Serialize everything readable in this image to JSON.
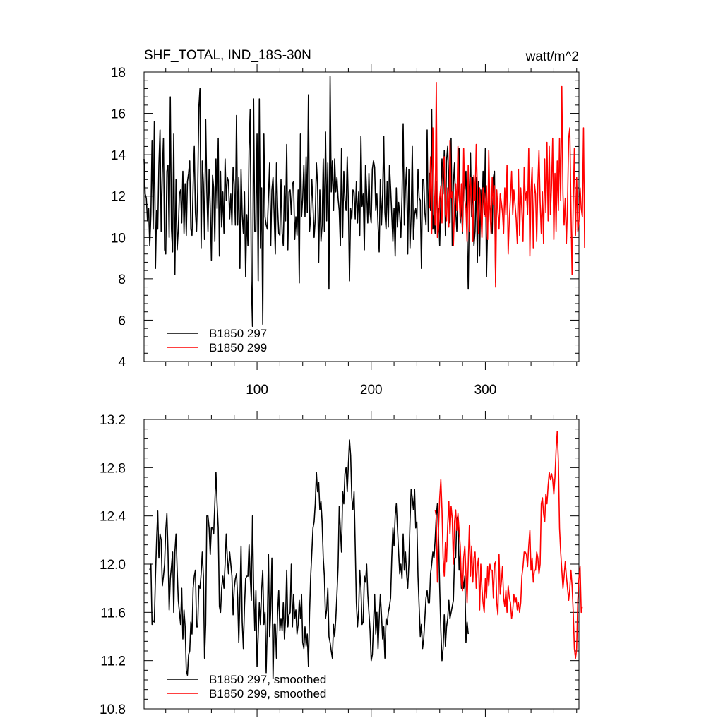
{
  "chart_data": [
    {
      "type": "line",
      "title": "SHF_TOTAL, IND_18S-30N",
      "units_label": "watt/m^2",
      "xlim": [
        1,
        382
      ],
      "ylim": [
        4,
        18
      ],
      "yticks": [
        4,
        6,
        8,
        10,
        12,
        14,
        16,
        18
      ],
      "xticks": [
        100,
        200,
        300
      ],
      "ytick_labels": [
        "4",
        "6",
        "8",
        "10",
        "12",
        "14",
        "16",
        "18"
      ],
      "xtick_labels": [
        "100",
        "200",
        "300"
      ],
      "legend_position": "bottom-left",
      "series": [
        {
          "name": "B1850 297",
          "color": "#000000",
          "x_start": 1,
          "values": [
            13.8,
            12.1,
            11.9,
            10.8,
            11.4,
            9.6,
            11.1,
            14.7,
            10.4,
            15.6,
            8.5,
            11.3,
            10.4,
            13.5,
            15.2,
            10.3,
            13.1,
            14.8,
            9.4,
            9.2,
            13.2,
            13.5,
            10.0,
            16.8,
            10.4,
            9.3,
            15.0,
            8.2,
            12.8,
            9.4,
            10.4,
            12.1,
            12.3,
            10.7,
            13.2,
            10.2,
            12.6,
            10.1,
            12.7,
            13.1,
            13.7,
            10.4,
            10.1,
            12.5,
            14.4,
            11.2,
            10.3,
            12.2,
            16.3,
            17.2,
            9.5,
            13.7,
            12.6,
            9.9,
            15.7,
            12.2,
            10.3,
            13.3,
            11.4,
            8.9,
            13.0,
            12.4,
            9.8,
            13.8,
            11.4,
            14.8,
            9.1,
            13.2,
            10.5,
            12.2,
            10.2,
            13.8,
            11.8,
            12.9,
            12.7,
            10.9,
            12.1,
            10.6,
            13.4,
            12.6,
            10.6,
            15.9,
            10.6,
            12.9,
            8.5,
            13.3,
            11.1,
            10.2,
            12.2,
            8.1,
            11.1,
            9.6,
            14.2,
            16.2,
            7.9,
            5.7,
            16.7,
            10.3,
            10.3,
            15.0,
            7.9,
            16.7,
            9.5,
            12.4,
            5.8,
            15.0,
            11.0,
            10.6,
            10.4,
            12.0,
            13.6,
            9.6,
            12.3,
            12.9,
            11.1,
            9.2,
            13.6,
            11.5,
            10.2,
            10.1,
            12.8,
            10.2,
            9.6,
            12.5,
            10.8,
            14.5,
            9.4,
            12.2,
            12.3,
            11.1,
            12.6,
            12.7,
            9.9,
            11.0,
            10.1,
            12.3,
            7.8,
            15.0,
            11.0,
            11.9,
            13.5,
            11.0,
            13.9,
            11.2,
            16.9,
            10.3,
            11.0,
            12.8,
            11.6,
            10.0,
            10.9,
            13.6,
            12.6,
            8.8,
            12.3,
            9.8,
            10.6,
            13.8,
            10.3,
            15.1,
            10.8,
            13.6,
            7.5,
            17.8,
            12.2,
            13.7,
            11.3,
            13.8,
            12.2,
            12.9,
            11.9,
            11.3,
            9.6,
            14.3,
            10.0,
            13.2,
            11.8,
            11.3,
            13.9,
            11.7,
            7.9,
            11.4,
            10.9,
            12.3,
            12.2,
            10.9,
            12.7,
            10.7,
            12.2,
            10.1,
            14.9,
            11.5,
            12.1,
            9.4,
            13.5,
            12.2,
            10.7,
            13.1,
            11.2,
            10.7,
            13.3,
            13.7,
            13.4,
            11.3,
            12.1,
            10.6,
            9.3,
            12.8,
            10.6,
            12.1,
            14.9,
            11.2,
            10.4,
            12.7,
            10.5,
            13.5,
            12.4,
            11.1,
            9.8,
            11.4,
            9.1,
            12.4,
            10.5,
            11.7,
            11.1,
            10.0,
            12.0,
            15.5,
            10.6,
            12.4,
            13.4,
            9.2,
            13.3,
            9.5,
            11.1,
            14.4,
            9.9,
            11.1,
            11.4,
            10.9,
            13.3,
            11.9,
            11.8,
            8.5,
            12.8,
            12.8,
            11.2,
            10.6,
            15.2,
            10.3,
            13.1,
            11.3,
            16.2,
            10.4,
            11.1,
            10.2,
            12.7,
            10.9,
            11.4,
            9.6,
            12.0,
            13.8,
            12.1,
            14.2,
            10.1,
            13.7,
            14.4,
            12.6,
            10.7,
            14.8,
            9.6,
            12.6,
            13.6,
            11.3,
            10.3,
            12.1,
            14.3,
            10.7,
            11.6,
            10.2,
            12.9,
            12.3,
            13.2,
            10.1,
            7.5,
            11.7,
            14.1,
            11.0,
            12.9,
            9.6,
            10.3,
            12.9,
            8.8,
            12.7,
            9.1,
            12.3,
            10.7,
            13.2,
            11.1,
            14.3,
            8.1,
            10.6,
            12.3,
            11.5,
            10.8,
            10.2,
            12.9,
            13.2,
            7.8
          ]
        },
        {
          "name": "B1850 299",
          "color": "#ff0000",
          "x_start": 251,
          "values": [
            11.4,
            13.9,
            10.2,
            15.3,
            12.3,
            10.6,
            17.5,
            10.0,
            10.4,
            11.9,
            12.5,
            10.7,
            13.4,
            13.9,
            11.1,
            10.8,
            12.4,
            10.5,
            14.7,
            11.9,
            12.2,
            9.6,
            11.5,
            12.6,
            11.3,
            14.4,
            12.1,
            10.9,
            12.6,
            10.3,
            14.3,
            11.8,
            11.4,
            9.8,
            13.5,
            10.3,
            12.9,
            11.8,
            9.8,
            13.0,
            11.8,
            14.5,
            12.3,
            10.2,
            12.4,
            11.3,
            10.0,
            12.4,
            12.1,
            11.0,
            12.5,
            9.9,
            14.2,
            11.4,
            10.2,
            12.9,
            11.6,
            12.5,
            7.6,
            12.3,
            11.2,
            10.4,
            12.1,
            11.7,
            11.2,
            10.2,
            12.4,
            11.1,
            13.5,
            9.2,
            10.9,
            11.9,
            13.2,
            11.1,
            12.3,
            11.6,
            10.9,
            9.7,
            13.3,
            10.1,
            12.4,
            11.3,
            9.8,
            13.4,
            11.8,
            12.2,
            11.1,
            14.3,
            9.1,
            12.2,
            13.4,
            9.5,
            12.6,
            12.1,
            9.8,
            12.6,
            14.2,
            11.7,
            10.2,
            12.2,
            9.7,
            13.8,
            11.2,
            14.6,
            10.8,
            14.4,
            11.1,
            12.5,
            14.8,
            9.9,
            13.1,
            10.3,
            13.7,
            11.3,
            14.8,
            11.8,
            17.3,
            12.1,
            10.6,
            11.9,
            9.7,
            11.6,
            14.8,
            15.3,
            11.4,
            8.2,
            11.7,
            14.3,
            10.1,
            12.9,
            10.3,
            10.8,
            12.4,
            11.4,
            11.0,
            15.3,
            9.5
          ]
        }
      ]
    },
    {
      "type": "line",
      "xlim": [
        1,
        382
      ],
      "ylim": [
        10.8,
        13.2
      ],
      "yticks": [
        10.8,
        11.2,
        11.6,
        12.0,
        12.4,
        12.8,
        13.2
      ],
      "xticks": [
        100,
        200,
        300
      ],
      "ytick_labels": [
        "10.8",
        "11.2",
        "11.6",
        "12.0",
        "12.4",
        "12.8",
        "13.2"
      ],
      "legend_position": "bottom-left",
      "series": [
        {
          "name": "B1850 297, smoothed",
          "color": "#000000",
          "x_start": 6,
          "values": [
            11.95,
            12.0,
            11.5,
            11.53,
            11.52,
            11.9,
            12.2,
            12.44,
            12.05,
            12.25,
            12.2,
            11.82,
            11.9,
            12.0,
            12.28,
            12.42,
            12.1,
            11.62,
            11.88,
            11.98,
            12.1,
            11.6,
            12.1,
            12.25,
            11.95,
            11.7,
            11.6,
            11.5,
            11.8,
            11.38,
            11.62,
            11.48,
            11.12,
            11.08,
            11.25,
            11.28,
            11.52,
            11.42,
            11.8,
            11.9,
            11.95,
            11.48,
            11.48,
            11.82,
            11.8,
            11.92,
            12.1,
            11.9,
            11.22,
            11.5,
            12.4,
            12.4,
            12.3,
            12.08,
            12.3,
            12.3,
            12.25,
            12.5,
            12.76,
            12.5,
            12.3,
            11.65,
            11.6,
            11.8,
            11.9,
            11.8,
            12.0,
            12.25,
            12.05,
            11.92,
            12.1,
            12.0,
            11.9,
            11.58,
            11.8,
            11.88,
            11.92,
            11.72,
            11.35,
            11.72,
            12.15,
            11.52,
            11.3,
            11.65,
            11.88,
            11.9,
            11.9,
            12.16,
            11.9,
            11.7,
            12.4,
            11.8,
            11.45,
            11.78,
            11.15,
            11.4,
            11.68,
            11.5,
            11.78,
            11.95,
            11.5,
            11.6,
            11.1,
            11.5,
            12.08,
            11.4,
            11.62,
            12.05,
            11.05,
            11.5,
            11.5,
            11.22,
            11.6,
            11.78,
            11.45,
            11.55,
            11.45,
            11.68,
            11.38,
            11.55,
            11.95,
            11.48,
            11.58,
            11.6,
            12.0,
            11.48,
            11.75,
            11.55,
            11.62,
            11.42,
            11.5,
            11.7,
            11.55,
            11.75,
            11.35,
            11.3,
            11.48,
            11.32,
            11.42,
            11.15,
            11.6,
            11.9,
            12.1,
            12.3,
            12.35,
            12.5,
            12.76,
            12.6,
            12.68,
            12.45,
            12.52,
            12.35,
            12.05,
            11.9,
            11.55,
            11.62,
            11.8,
            11.4,
            11.35,
            11.28,
            11.22,
            11.5,
            11.4,
            11.55,
            11.75,
            11.98,
            12.48,
            12.28,
            12.1,
            12.6,
            12.5,
            12.75,
            12.8,
            12.6,
            12.82,
            13.03,
            12.9,
            12.55,
            12.45,
            12.6,
            12.15,
            11.68,
            11.48,
            11.62,
            11.95,
            11.8,
            11.5,
            11.52,
            11.9,
            11.85,
            12.0,
            11.75,
            11.6,
            11.45,
            11.2,
            11.25,
            11.5,
            11.75,
            11.42,
            11.6,
            11.3,
            11.55,
            11.75,
            11.58,
            11.38,
            11.48,
            11.22,
            11.55,
            11.5,
            11.6,
            11.65,
            11.72,
            12.05,
            12.3,
            12.15,
            12.4,
            12.5,
            12.3,
            12.1,
            11.92,
            12.0,
            11.88,
            12.25,
            11.95,
            12.1,
            11.92,
            11.8,
            12.0,
            12.35,
            12.62,
            12.55,
            12.45,
            12.62,
            12.3,
            12.35,
            11.9,
            11.65,
            11.4,
            11.5,
            11.3,
            11.38,
            11.55,
            11.72,
            11.78,
            11.68,
            11.68,
            11.92,
            12.0,
            12.1,
            12.05,
            12.2,
            12.4,
            12.5,
            12.22,
            11.8,
            11.45,
            11.2,
            11.3,
            11.58,
            11.32,
            11.48,
            11.55,
            11.7,
            11.55,
            11.6,
            11.65,
            11.7,
            12.05,
            12.05,
            12.38,
            12.4,
            11.95,
            12.08,
            11.8,
            11.9,
            11.8,
            11.9,
            11.35,
            11.52,
            11.42
          ]
        },
        {
          "name": "B1850 299, smoothed",
          "color": "#ff0000",
          "x_start": 256,
          "values": [
            12.45,
            12.4,
            11.85,
            12.3,
            12.55,
            12.7,
            12.45,
            12.05,
            11.9,
            12.18,
            12.02,
            12.32,
            12.52,
            12.25,
            12.48,
            12.38,
            12.0,
            12.35,
            12.45,
            12.28,
            12.42,
            12.28,
            12.15,
            11.85,
            11.78,
            12.05,
            12.15,
            11.92,
            11.68,
            12.0,
            12.32,
            11.9,
            12.15,
            11.85,
            12.05,
            12.1,
            11.8,
            11.98,
            12.05,
            11.62,
            12.0,
            11.8,
            11.68,
            11.6,
            11.88,
            11.72,
            11.98,
            11.82,
            12.0,
            11.95,
            11.95,
            11.72,
            12.0,
            12.02,
            11.68,
            11.58,
            12.08,
            11.75,
            11.85,
            11.98,
            11.72,
            11.65,
            11.78,
            11.6,
            11.82,
            11.72,
            11.68,
            11.55,
            11.62,
            11.75,
            11.68,
            11.72,
            11.62,
            11.68,
            11.6,
            11.68,
            11.9,
            11.98,
            12.1,
            12.1,
            12.08,
            11.98,
            12.15,
            12.28,
            11.95,
            12.05,
            11.85,
            11.95,
            11.95,
            12.1,
            12.05,
            11.92,
            12.0,
            12.5,
            12.55,
            12.42,
            12.35,
            12.58,
            12.5,
            12.65,
            12.76,
            12.7,
            12.75,
            12.7,
            12.58,
            12.72,
            12.95,
            13.1,
            12.85,
            12.3,
            12.1,
            11.95,
            11.8,
            11.9,
            12.02,
            11.9,
            11.8,
            11.7,
            11.8,
            11.95,
            11.82,
            11.6,
            11.3,
            11.22,
            11.3,
            11.7,
            11.88,
            11.98,
            11.6,
            11.65
          ]
        }
      ]
    }
  ]
}
